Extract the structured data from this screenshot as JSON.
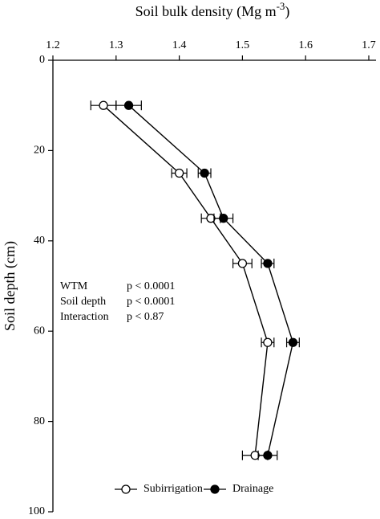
{
  "chart_data": {
    "type": "line",
    "xlabel": {
      "text": "Soil bulk density (Mg m",
      "superscript": "-3",
      "suffix": ")"
    },
    "ylabel": "Soil depth (cm)",
    "y": [
      10,
      25,
      35,
      45,
      62.5,
      87.5
    ],
    "series": [
      {
        "name": "Subirrigation",
        "color": "#000000",
        "marker": "open",
        "values": [
          1.28,
          1.4,
          1.45,
          1.5,
          1.54,
          1.52
        ],
        "errors": [
          0.02,
          0.012,
          0.015,
          0.015,
          0.01,
          0.02
        ]
      },
      {
        "name": "Drainage",
        "color": "#000000",
        "marker": "filled",
        "values": [
          1.32,
          1.44,
          1.47,
          1.54,
          1.58,
          1.54
        ],
        "errors": [
          0.02,
          0.01,
          0.015,
          0.01,
          0.01,
          0.015
        ]
      }
    ],
    "xlim": [
      1.2,
      1.7
    ],
    "xticks": [
      1.2,
      1.3,
      1.4,
      1.5,
      1.6,
      1.7
    ],
    "ylim": [
      0,
      100
    ],
    "yticks": [
      0,
      20,
      40,
      60,
      80,
      100
    ],
    "y_inverted": true,
    "annotations": [
      {
        "label": "WTM",
        "text": "p < 0.0001"
      },
      {
        "label": "Soil depth",
        "text": "p < 0.0001"
      },
      {
        "label": "Interaction",
        "text": "p < 0.87"
      }
    ],
    "legend": "bottom"
  }
}
